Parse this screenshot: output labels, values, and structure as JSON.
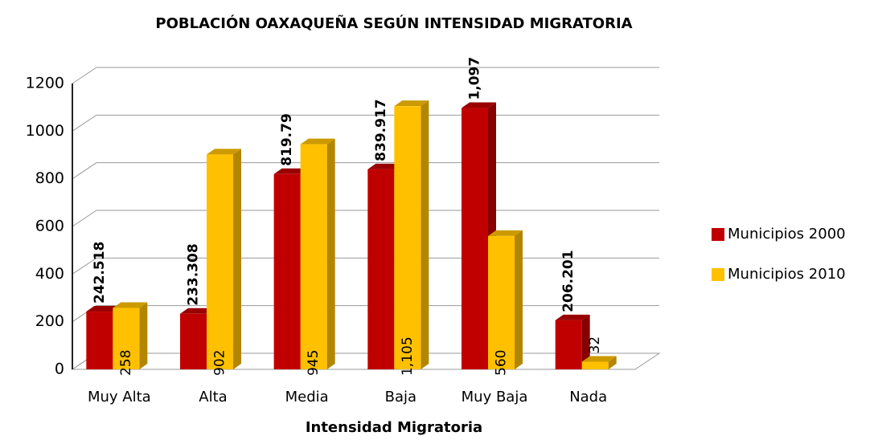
{
  "chart_data": {
    "type": "bar",
    "title": "POBLACIÓN OAXAQUEÑA SEGÚN INTENSIDAD MIGRATORIA",
    "x_label": "Intensidad Migratoria",
    "categories": [
      "Muy Alta",
      "Alta",
      "Media",
      "Baja",
      "Muy Baja",
      "Nada"
    ],
    "series": [
      {
        "name": "Municipios 2000",
        "color": "#c00000",
        "values": [
          242.518,
          233.308,
          819.79,
          839.917,
          1097,
          206.201
        ],
        "value_labels": [
          "242.518",
          "233.308",
          "819.79",
          "839.917",
          "1,097",
          "206.201"
        ]
      },
      {
        "name": "Municipios 2010",
        "color": "#ffc000",
        "values": [
          258,
          902,
          945,
          1105,
          560,
          32
        ],
        "value_labels": [
          "258",
          "902",
          "945",
          "1,105",
          "560",
          "32"
        ]
      }
    ],
    "ylim": [
      0,
      1200
    ],
    "yticks": [
      0,
      200,
      400,
      600,
      800,
      1000,
      1200
    ],
    "grid": true,
    "legend": "right"
  }
}
